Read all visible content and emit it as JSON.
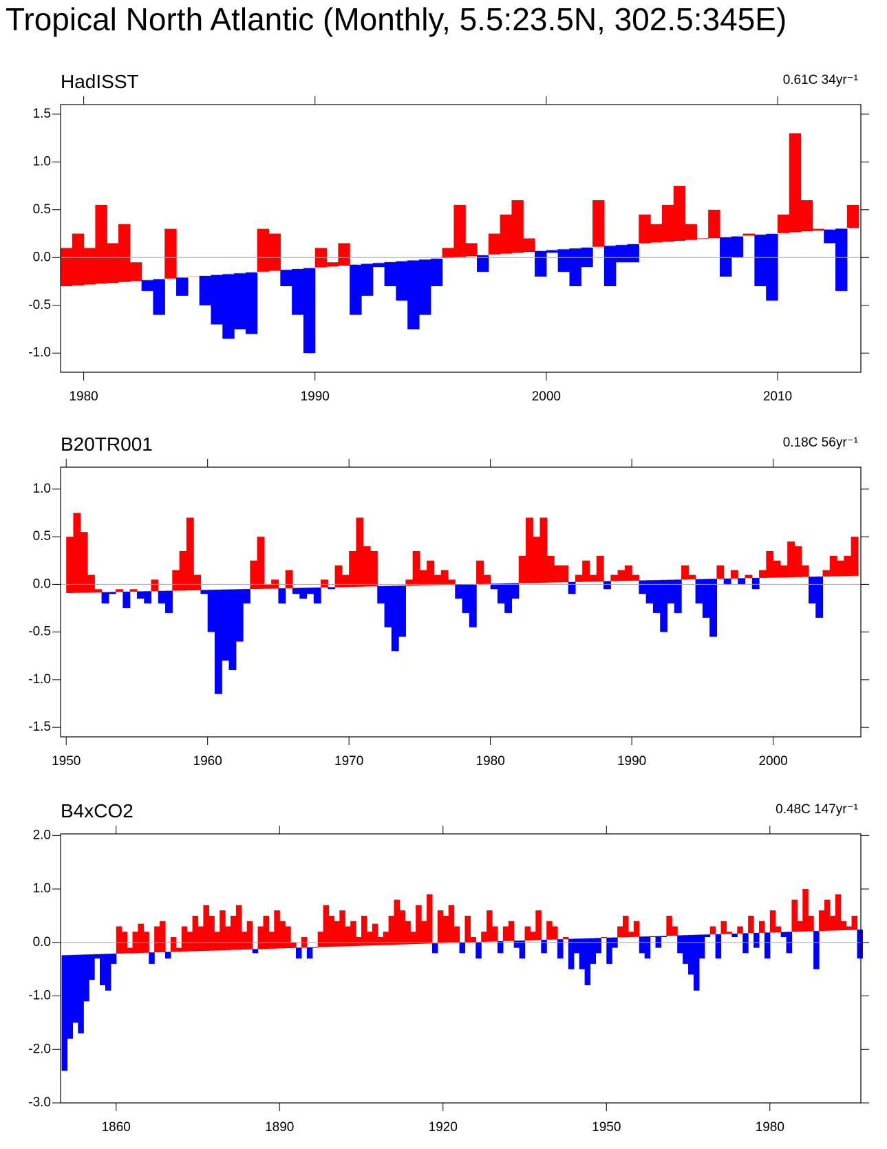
{
  "title": "Tropical North Atlantic (Monthly, 5.5:23.5N, 302.5:345E)",
  "chart_data": [
    {
      "type": "area",
      "title": "HadISST",
      "annotation": "0.61C 34yr⁻¹",
      "color_above": "#ff0000",
      "color_below": "#0000ff",
      "xlim": [
        1979,
        2013.6
      ],
      "xticks": [
        1980,
        1990,
        2000,
        2010
      ],
      "ylim": [
        -1.2,
        1.6
      ],
      "yticks": [
        {
          "value": -1,
          "label": "-1.0"
        },
        -0.5,
        {
          "value": 0,
          "label": "0.0"
        },
        0.5,
        {
          "value": 1,
          "label": "1.0"
        },
        1.5
      ],
      "trend": [
        -0.3,
        0.31
      ],
      "x": [
        1979,
        1979.5,
        1980,
        1980.5,
        1981,
        1981.5,
        1982,
        1982.5,
        1983,
        1983.5,
        1984,
        1984.5,
        1985,
        1985.5,
        1986,
        1986.5,
        1987,
        1987.5,
        1988,
        1988.5,
        1989,
        1989.5,
        1990,
        1990.5,
        1991,
        1991.5,
        1992,
        1992.5,
        1993,
        1993.5,
        1994,
        1994.5,
        1995,
        1995.5,
        1996,
        1996.5,
        1997,
        1997.5,
        1998,
        1998.5,
        1999,
        1999.5,
        2000,
        2000.5,
        2001,
        2001.5,
        2002,
        2002.5,
        2003,
        2003.5,
        2004,
        2004.5,
        2005,
        2005.5,
        2006,
        2006.5,
        2007,
        2007.5,
        2008,
        2008.5,
        2009,
        2009.5,
        2010,
        2010.5,
        2011,
        2011.5,
        2012,
        2012.5,
        2013
      ],
      "values": [
        0.1,
        0.25,
        0.1,
        0.55,
        0.15,
        0.35,
        -0.05,
        -0.35,
        -0.6,
        0.3,
        -0.4,
        -0.2,
        -0.5,
        -0.7,
        -0.85,
        -0.75,
        -0.8,
        0.3,
        0.25,
        -0.3,
        -0.6,
        -1.0,
        0.1,
        -0.05,
        0.15,
        -0.6,
        -0.4,
        -0.1,
        -0.3,
        -0.45,
        -0.75,
        -0.6,
        -0.3,
        0.1,
        0.55,
        0.15,
        -0.15,
        0.25,
        0.45,
        0.6,
        0.2,
        -0.2,
        0.05,
        -0.15,
        -0.3,
        -0.1,
        0.6,
        -0.3,
        -0.05,
        -0.05,
        0.45,
        0.35,
        0.55,
        0.75,
        0.35,
        0.2,
        0.5,
        -0.2,
        0.0,
        0.25,
        -0.3,
        -0.45,
        0.45,
        1.3,
        0.6,
        0.3,
        0.15,
        -0.35,
        0.55
      ]
    },
    {
      "type": "area",
      "title": "B20TR001",
      "annotation": "0.18C 56yr⁻¹",
      "color_above": "#ff0000",
      "color_below": "#0000ff",
      "xlim": [
        1949.6,
        2006.2
      ],
      "xticks": [
        1950,
        1960,
        1970,
        1980,
        1990,
        2000
      ],
      "ylim": [
        -1.6,
        1.23
      ],
      "yticks": [
        -1.5,
        {
          "value": -1,
          "label": "-1.0"
        },
        -0.5,
        {
          "value": 0,
          "label": "0.0"
        },
        0.5,
        {
          "value": 1,
          "label": "1.0"
        }
      ],
      "trend": [
        -0.09,
        0.09
      ],
      "x": [
        1950,
        1950.5,
        1951,
        1951.5,
        1952,
        1952.5,
        1953,
        1953.5,
        1954,
        1954.5,
        1955,
        1955.5,
        1956,
        1956.5,
        1957,
        1957.5,
        1958,
        1958.5,
        1959,
        1959.5,
        1960,
        1960.5,
        1961,
        1961.5,
        1962,
        1962.5,
        1963,
        1963.5,
        1964,
        1964.5,
        1965,
        1965.5,
        1966,
        1966.5,
        1967,
        1967.5,
        1968,
        1968.5,
        1969,
        1969.5,
        1970,
        1970.5,
        1971,
        1971.5,
        1972,
        1972.5,
        1973,
        1973.5,
        1974,
        1974.5,
        1975,
        1975.5,
        1976,
        1976.5,
        1977,
        1977.5,
        1978,
        1978.5,
        1979,
        1979.5,
        1980,
        1980.5,
        1981,
        1981.5,
        1982,
        1982.5,
        1983,
        1983.5,
        1984,
        1984.5,
        1985,
        1985.5,
        1986,
        1986.5,
        1987,
        1987.5,
        1988,
        1988.5,
        1989,
        1989.5,
        1990,
        1990.5,
        1991,
        1991.5,
        1992,
        1992.5,
        1993,
        1993.5,
        1994,
        1994.5,
        1995,
        1995.5,
        1996,
        1996.5,
        1997,
        1997.5,
        1998,
        1998.5,
        1999,
        1999.5,
        2000,
        2000.5,
        2001,
        2001.5,
        2002,
        2002.5,
        2003,
        2003.5,
        2004,
        2004.5,
        2005,
        2005.5
      ],
      "values": [
        0.5,
        0.75,
        0.55,
        0.1,
        -0.05,
        -0.2,
        -0.1,
        -0.05,
        -0.25,
        -0.05,
        -0.15,
        -0.2,
        0.05,
        -0.2,
        -0.3,
        0.15,
        0.35,
        0.7,
        0.1,
        -0.1,
        -0.5,
        -1.15,
        -0.8,
        -0.9,
        -0.6,
        -0.2,
        0.25,
        0.5,
        0.0,
        0.05,
        -0.2,
        0.15,
        -0.1,
        -0.15,
        -0.1,
        -0.2,
        0.05,
        -0.05,
        0.2,
        0.1,
        0.35,
        0.7,
        0.4,
        0.35,
        -0.2,
        -0.45,
        -0.7,
        -0.55,
        0.05,
        0.35,
        0.15,
        0.25,
        0.1,
        0.15,
        0.05,
        -0.15,
        -0.3,
        -0.45,
        0.25,
        0.1,
        -0.05,
        -0.2,
        -0.3,
        -0.15,
        0.3,
        0.7,
        0.5,
        0.7,
        0.3,
        0.2,
        0.2,
        -0.1,
        0.1,
        0.25,
        0.1,
        0.3,
        -0.05,
        0.1,
        0.15,
        0.2,
        0.1,
        -0.1,
        -0.2,
        -0.3,
        -0.5,
        -0.2,
        -0.3,
        0.2,
        0.1,
        -0.2,
        -0.35,
        -0.55,
        0.2,
        0.0,
        0.15,
        0.0,
        0.1,
        -0.05,
        0.15,
        0.35,
        0.25,
        0.2,
        0.45,
        0.4,
        0.2,
        -0.2,
        -0.35,
        0.15,
        0.3,
        0.25,
        0.3,
        0.5
      ]
    },
    {
      "type": "area",
      "title": "B4xCO2",
      "annotation": "0.48C 147yr⁻¹",
      "color_above": "#ff0000",
      "color_below": "#0000ff",
      "xlim": [
        1849.8,
        1996.7
      ],
      "xticks": [
        1860,
        1890,
        1920,
        1950,
        1980
      ],
      "ylim": [
        -3.0,
        2.03
      ],
      "yticks": [
        {
          "value": -3,
          "label": "-3.0"
        },
        {
          "value": -2,
          "label": "-2.0"
        },
        {
          "value": -1,
          "label": "-1.0"
        },
        {
          "value": 0,
          "label": "0.0"
        },
        {
          "value": 1,
          "label": "1.0"
        },
        {
          "value": 2,
          "label": "2.0"
        }
      ],
      "trend": [
        -0.24,
        0.24
      ],
      "x": [
        1850,
        1851,
        1852,
        1853,
        1854,
        1855,
        1856,
        1857,
        1858,
        1859,
        1860,
        1861,
        1862,
        1863,
        1864,
        1865,
        1866,
        1867,
        1868,
        1869,
        1870,
        1871,
        1872,
        1873,
        1874,
        1875,
        1876,
        1877,
        1878,
        1879,
        1880,
        1881,
        1882,
        1883,
        1884,
        1885,
        1886,
        1887,
        1888,
        1889,
        1890,
        1891,
        1892,
        1893,
        1894,
        1895,
        1896,
        1897,
        1898,
        1899,
        1900,
        1901,
        1902,
        1903,
        1904,
        1905,
        1906,
        1907,
        1908,
        1909,
        1910,
        1911,
        1912,
        1913,
        1914,
        1915,
        1916,
        1917,
        1918,
        1919,
        1920,
        1921,
        1922,
        1923,
        1924,
        1925,
        1926,
        1927,
        1928,
        1929,
        1930,
        1931,
        1932,
        1933,
        1934,
        1935,
        1936,
        1937,
        1938,
        1939,
        1940,
        1941,
        1942,
        1943,
        1944,
        1945,
        1946,
        1947,
        1948,
        1949,
        1950,
        1951,
        1952,
        1953,
        1954,
        1955,
        1956,
        1957,
        1958,
        1959,
        1960,
        1961,
        1962,
        1963,
        1964,
        1965,
        1966,
        1967,
        1968,
        1969,
        1970,
        1971,
        1972,
        1973,
        1974,
        1975,
        1976,
        1977,
        1978,
        1979,
        1980,
        1981,
        1982,
        1983,
        1984,
        1985,
        1986,
        1987,
        1988,
        1989,
        1990,
        1991,
        1992,
        1993,
        1994,
        1995,
        1996
      ],
      "values": [
        -2.4,
        -1.8,
        -1.5,
        -1.7,
        -1.1,
        -0.7,
        -0.3,
        -0.8,
        -0.9,
        -0.4,
        0.3,
        0.2,
        -0.1,
        0.2,
        0.35,
        0.2,
        -0.4,
        0.3,
        0.4,
        -0.3,
        0.1,
        -0.1,
        0.3,
        0.2,
        0.5,
        0.3,
        0.7,
        0.5,
        0.2,
        0.6,
        0.3,
        0.5,
        0.7,
        0.2,
        0.4,
        -0.2,
        0.3,
        0.5,
        0.2,
        0.6,
        0.4,
        0.3,
        0.0,
        -0.3,
        0.1,
        -0.3,
        -0.1,
        0.2,
        0.7,
        0.5,
        0.4,
        0.6,
        0.3,
        0.4,
        0.1,
        0.5,
        0.2,
        0.35,
        0.1,
        0.2,
        0.5,
        0.8,
        0.6,
        0.4,
        0.2,
        0.7,
        0.4,
        0.9,
        -0.2,
        0.6,
        0.5,
        0.7,
        0.3,
        -0.2,
        0.5,
        0.1,
        -0.3,
        0.2,
        0.6,
        0.3,
        -0.2,
        0.3,
        0.4,
        -0.1,
        -0.3,
        0.3,
        0.2,
        0.6,
        -0.2,
        0.4,
        0.3,
        -0.3,
        0.1,
        -0.5,
        -0.2,
        -0.5,
        -0.8,
        -0.4,
        -0.2,
        0.1,
        -0.4,
        -0.1,
        0.3,
        0.5,
        0.2,
        0.4,
        -0.2,
        -0.3,
        0.1,
        -0.1,
        0.1,
        0.5,
        0.3,
        -0.2,
        -0.4,
        -0.6,
        -0.9,
        -0.3,
        0.1,
        0.3,
        -0.3,
        0.4,
        0.2,
        0.1,
        0.3,
        -0.2,
        0.5,
        -0.1,
        0.4,
        -0.3,
        0.6,
        0.3,
        0.1,
        -0.2,
        0.8,
        0.4,
        1.0,
        0.5,
        -0.5,
        0.6,
        0.8,
        0.5,
        0.9,
        0.4,
        0.3,
        0.5,
        -0.3
      ]
    }
  ]
}
